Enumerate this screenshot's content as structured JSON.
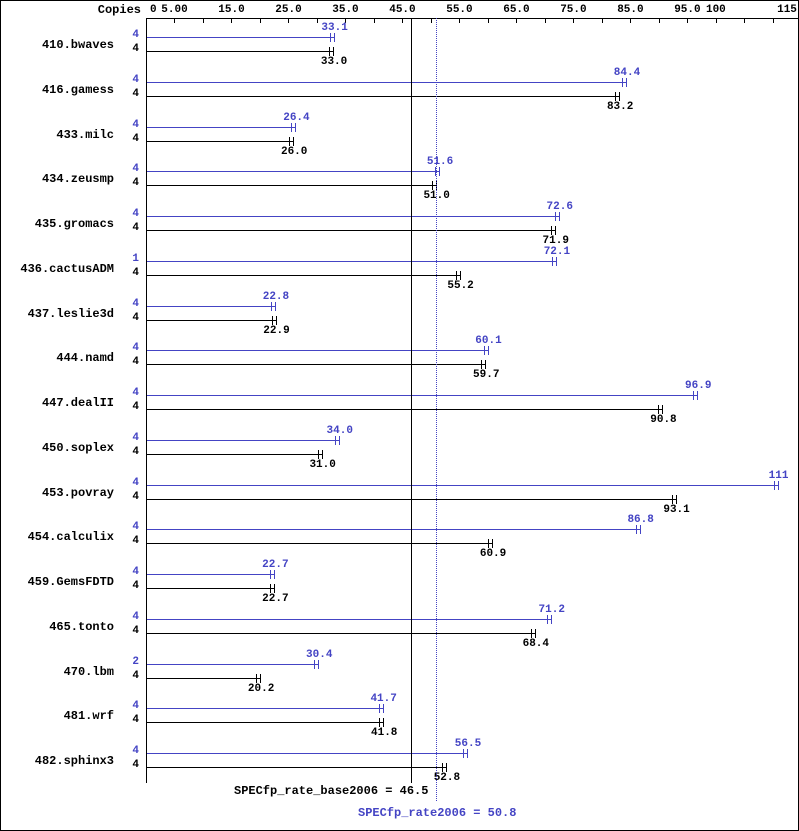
{
  "header": {
    "copies_label": "Copies"
  },
  "chart_data": {
    "type": "bar",
    "orientation": "horizontal",
    "x_axis": {
      "min": 0,
      "max": 115.7,
      "minor_tick_step": 5,
      "labeled_ticks": [
        {
          "value": 0,
          "label": "0"
        },
        {
          "value": 5,
          "label": "5.00"
        },
        {
          "value": 15,
          "label": "15.0"
        },
        {
          "value": 25,
          "label": "25.0"
        },
        {
          "value": 35,
          "label": "35.0"
        },
        {
          "value": 45,
          "label": "45.0"
        },
        {
          "value": 55,
          "label": "55.0"
        },
        {
          "value": 65,
          "label": "65.0"
        },
        {
          "value": 75,
          "label": "75.0"
        },
        {
          "value": 85,
          "label": "85.0"
        },
        {
          "value": 95,
          "label": "95.0"
        },
        {
          "value": 100,
          "label": "100"
        },
        {
          "value": 115,
          "label": "115"
        }
      ]
    },
    "series": [
      {
        "name": "SPECfp_rate2006 (peak)",
        "color": "#4444c4"
      },
      {
        "name": "SPECfp_rate_base2006 (base)",
        "color": "#000000"
      }
    ],
    "benchmarks": [
      {
        "name": "410.bwaves",
        "peak_copies": "4",
        "base_copies": "4",
        "peak": 33.1,
        "peak_label": "33.1",
        "base": 33.0,
        "base_label": "33.0"
      },
      {
        "name": "416.gamess",
        "peak_copies": "4",
        "base_copies": "4",
        "peak": 84.4,
        "peak_label": "84.4",
        "base": 83.2,
        "base_label": "83.2"
      },
      {
        "name": "433.milc",
        "peak_copies": "4",
        "base_copies": "4",
        "peak": 26.4,
        "peak_label": "26.4",
        "base": 26.0,
        "base_label": "26.0"
      },
      {
        "name": "434.zeusmp",
        "peak_copies": "4",
        "base_copies": "4",
        "peak": 51.6,
        "peak_label": "51.6",
        "base": 51.0,
        "base_label": "51.0"
      },
      {
        "name": "435.gromacs",
        "peak_copies": "4",
        "base_copies": "4",
        "peak": 72.6,
        "peak_label": "72.6",
        "base": 71.9,
        "base_label": "71.9"
      },
      {
        "name": "436.cactusADM",
        "peak_copies": "1",
        "base_copies": "4",
        "peak": 72.1,
        "peak_label": "72.1",
        "base": 55.2,
        "base_label": "55.2"
      },
      {
        "name": "437.leslie3d",
        "peak_copies": "4",
        "base_copies": "4",
        "peak": 22.8,
        "peak_label": "22.8",
        "base": 22.9,
        "base_label": "22.9"
      },
      {
        "name": "444.namd",
        "peak_copies": "4",
        "base_copies": "4",
        "peak": 60.1,
        "peak_label": "60.1",
        "base": 59.7,
        "base_label": "59.7"
      },
      {
        "name": "447.dealII",
        "peak_copies": "4",
        "base_copies": "4",
        "peak": 96.9,
        "peak_label": "96.9",
        "base": 90.8,
        "base_label": "90.8"
      },
      {
        "name": "450.soplex",
        "peak_copies": "4",
        "base_copies": "4",
        "peak": 34.0,
        "peak_label": "34.0",
        "base": 31.0,
        "base_label": "31.0"
      },
      {
        "name": "453.povray",
        "peak_copies": "4",
        "base_copies": "4",
        "peak": 111,
        "peak_label": "111",
        "base": 93.1,
        "base_label": "93.1"
      },
      {
        "name": "454.calculix",
        "peak_copies": "4",
        "base_copies": "4",
        "peak": 86.8,
        "peak_label": "86.8",
        "base": 60.9,
        "base_label": "60.9"
      },
      {
        "name": "459.GemsFDTD",
        "peak_copies": "4",
        "base_copies": "4",
        "peak": 22.7,
        "peak_label": "22.7",
        "base": 22.7,
        "base_label": "22.7"
      },
      {
        "name": "465.tonto",
        "peak_copies": "4",
        "base_copies": "4",
        "peak": 71.2,
        "peak_label": "71.2",
        "base": 68.4,
        "base_label": "68.4"
      },
      {
        "name": "470.lbm",
        "peak_copies": "2",
        "base_copies": "4",
        "peak": 30.4,
        "peak_label": "30.4",
        "base": 20.2,
        "base_label": "20.2"
      },
      {
        "name": "481.wrf",
        "peak_copies": "4",
        "base_copies": "4",
        "peak": 41.7,
        "peak_label": "41.7",
        "base": 41.8,
        "base_label": "41.8"
      },
      {
        "name": "482.sphinx3",
        "peak_copies": "4",
        "base_copies": "4",
        "peak": 56.5,
        "peak_label": "56.5",
        "base": 52.8,
        "base_label": "52.8"
      }
    ],
    "base_mean": 46.5,
    "peak_mean": 50.8,
    "footer_base": "SPECfp_rate_base2006 = 46.5",
    "footer_peak": "SPECfp_rate2006 = 50.8"
  }
}
